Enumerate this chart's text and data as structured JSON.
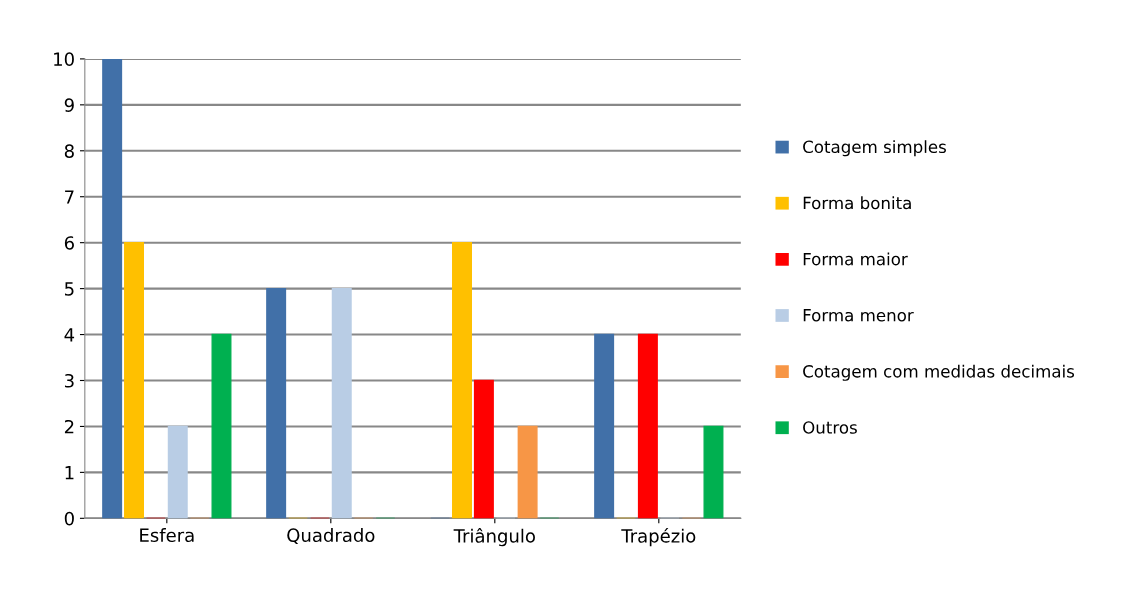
{
  "chart_data": {
    "type": "bar",
    "categories": [
      "Esfera",
      "Quadrado",
      "Triângulo",
      "Trapézio"
    ],
    "series": [
      {
        "name": "Cotagem simples",
        "color": "#4170a8",
        "values": [
          10,
          5,
          0,
          4
        ]
      },
      {
        "name": "Forma bonita",
        "color": "#ffc000",
        "values": [
          6,
          0,
          6,
          0
        ]
      },
      {
        "name": "Forma maior",
        "color": "#ff0000",
        "values": [
          0,
          0,
          3,
          4
        ]
      },
      {
        "name": "Forma menor",
        "color": "#b9cde5",
        "values": [
          2,
          5,
          0,
          0
        ]
      },
      {
        "name": "Cotagem com medidas decimais",
        "color": "#f79646",
        "values": [
          0,
          0,
          2,
          0
        ]
      },
      {
        "name": "Outros",
        "color": "#00b050",
        "values": [
          4,
          0,
          0,
          2
        ]
      }
    ],
    "ylim": [
      0,
      10
    ],
    "yticks": [
      0,
      1,
      2,
      3,
      4,
      5,
      6,
      7,
      8,
      9,
      10
    ],
    "grid": "y",
    "legend": "right"
  }
}
